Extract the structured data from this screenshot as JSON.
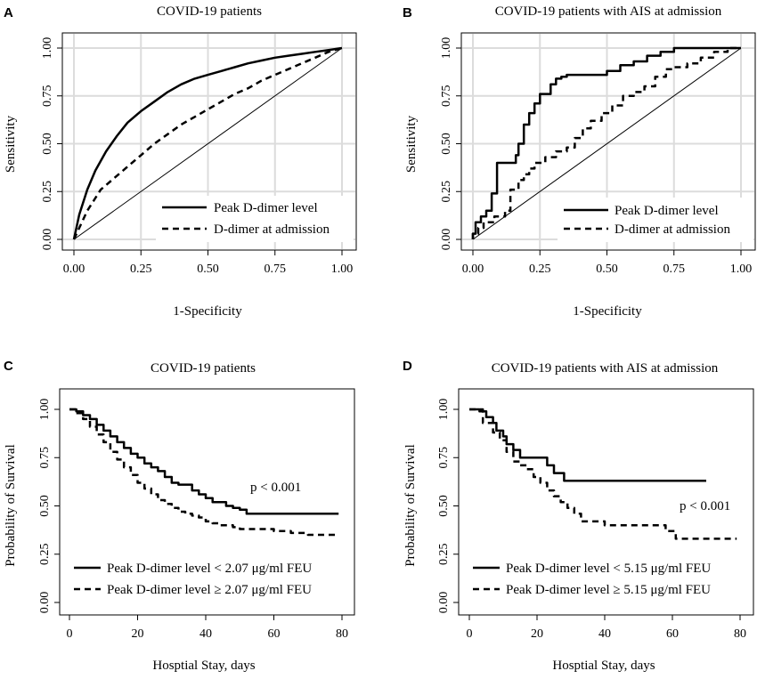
{
  "chart_data": [
    {
      "panel": "A",
      "type": "line",
      "title": "COVID-19 patients",
      "xlabel": "1-Specificity",
      "ylabel": "Sensitivity",
      "xlim": [
        0,
        1
      ],
      "ylim": [
        0,
        1
      ],
      "xticks": [
        "0.00",
        "0.25",
        "0.50",
        "0.75",
        "1.00"
      ],
      "yticks": [
        "0.00",
        "0.25",
        "0.50",
        "0.75",
        "1.00"
      ],
      "grid": true,
      "reference_line": true,
      "legend_position": "bottom-right",
      "series": [
        {
          "name": "Peak D-dimer level",
          "style": "solid",
          "step": false,
          "x": [
            0,
            0.02,
            0.05,
            0.08,
            0.12,
            0.16,
            0.2,
            0.25,
            0.3,
            0.35,
            0.4,
            0.45,
            0.5,
            0.55,
            0.6,
            0.65,
            0.7,
            0.75,
            0.8,
            0.85,
            0.9,
            0.95,
            1.0
          ],
          "y": [
            0,
            0.13,
            0.26,
            0.36,
            0.46,
            0.54,
            0.61,
            0.67,
            0.72,
            0.77,
            0.81,
            0.84,
            0.86,
            0.88,
            0.9,
            0.92,
            0.935,
            0.95,
            0.96,
            0.97,
            0.98,
            0.99,
            1.0
          ]
        },
        {
          "name": "D-dimer at admission",
          "style": "dashed",
          "step": false,
          "x": [
            0,
            0.05,
            0.1,
            0.15,
            0.2,
            0.25,
            0.3,
            0.35,
            0.4,
            0.45,
            0.5,
            0.55,
            0.6,
            0.65,
            0.7,
            0.75,
            0.8,
            0.85,
            0.9,
            0.95,
            1.0
          ],
          "y": [
            0,
            0.15,
            0.26,
            0.32,
            0.38,
            0.44,
            0.5,
            0.55,
            0.6,
            0.64,
            0.68,
            0.72,
            0.76,
            0.79,
            0.83,
            0.86,
            0.89,
            0.92,
            0.95,
            0.98,
            1.0
          ]
        }
      ]
    },
    {
      "panel": "B",
      "type": "line",
      "title": "COVID-19 patients with AIS at admission",
      "xlabel": "1-Specificity",
      "ylabel": "Sensitivity",
      "xlim": [
        0,
        1
      ],
      "ylim": [
        0,
        1
      ],
      "xticks": [
        "0.00",
        "0.25",
        "0.50",
        "0.75",
        "1.00"
      ],
      "yticks": [
        "0.00",
        "0.25",
        "0.50",
        "0.75",
        "1.00"
      ],
      "grid": true,
      "reference_line": true,
      "legend_position": "bottom-right",
      "series": [
        {
          "name": "Peak D-dimer level",
          "style": "solid",
          "step": true,
          "x": [
            0,
            0.01,
            0.01,
            0.03,
            0.05,
            0.07,
            0.09,
            0.13,
            0.16,
            0.17,
            0.19,
            0.21,
            0.23,
            0.25,
            0.27,
            0.29,
            0.31,
            0.33,
            0.35,
            0.37,
            0.4,
            0.43,
            0.5,
            0.55,
            0.6,
            0.65,
            0.7,
            0.75,
            0.8,
            0.9,
            1.0
          ],
          "y": [
            0,
            0.03,
            0.06,
            0.09,
            0.12,
            0.15,
            0.24,
            0.4,
            0.4,
            0.44,
            0.5,
            0.6,
            0.66,
            0.71,
            0.76,
            0.76,
            0.81,
            0.84,
            0.85,
            0.86,
            0.86,
            0.86,
            0.86,
            0.88,
            0.91,
            0.93,
            0.96,
            0.98,
            1.0,
            1.0,
            1.0
          ]
        },
        {
          "name": "D-dimer at admission",
          "style": "dashed",
          "step": true,
          "x": [
            0,
            0.02,
            0.04,
            0.08,
            0.12,
            0.14,
            0.17,
            0.19,
            0.21,
            0.23,
            0.27,
            0.31,
            0.35,
            0.38,
            0.41,
            0.44,
            0.48,
            0.52,
            0.56,
            0.6,
            0.64,
            0.68,
            0.72,
            0.75,
            0.8,
            0.85,
            0.9,
            0.95,
            1.0
          ],
          "y": [
            0,
            0.03,
            0.06,
            0.09,
            0.12,
            0.15,
            0.26,
            0.31,
            0.34,
            0.37,
            0.4,
            0.43,
            0.46,
            0.48,
            0.53,
            0.58,
            0.62,
            0.66,
            0.7,
            0.75,
            0.77,
            0.8,
            0.85,
            0.89,
            0.9,
            0.92,
            0.95,
            0.98,
            1.0
          ]
        }
      ]
    },
    {
      "panel": "C",
      "type": "line",
      "title": "COVID-19 patients",
      "xlabel": "Hosptial Stay, days",
      "ylabel": "Probability of Survival",
      "xlim": [
        0,
        80
      ],
      "ylim": [
        0,
        1
      ],
      "xticks": [
        "0",
        "20",
        "40",
        "60",
        "80"
      ],
      "yticks": [
        "0.00",
        "0.25",
        "0.50",
        "0.75",
        "1.00"
      ],
      "grid": false,
      "reference_line": false,
      "legend_position": "bottom-left",
      "annotation": "p < 0.001",
      "series": [
        {
          "name": "Peak D-dimer level < 2.07 μg/ml FEU",
          "style": "solid",
          "step": true,
          "x": [
            0,
            2,
            4,
            6,
            8,
            10,
            12,
            14,
            16,
            18,
            20,
            22,
            24,
            26,
            28,
            30,
            32,
            34,
            36,
            38,
            40,
            42,
            44,
            46,
            48,
            50,
            52,
            79
          ],
          "y": [
            1.0,
            0.99,
            0.97,
            0.95,
            0.92,
            0.89,
            0.86,
            0.83,
            0.8,
            0.77,
            0.75,
            0.72,
            0.7,
            0.68,
            0.65,
            0.62,
            0.61,
            0.61,
            0.58,
            0.56,
            0.54,
            0.52,
            0.52,
            0.5,
            0.49,
            0.48,
            0.46,
            0.46
          ]
        },
        {
          "name": "Peak D-dimer level ≥ 2.07 μg/ml FEU",
          "style": "dashed",
          "step": true,
          "x": [
            0,
            2,
            4,
            6,
            8,
            10,
            12,
            14,
            16,
            18,
            20,
            22,
            24,
            26,
            28,
            30,
            32,
            34,
            36,
            38,
            40,
            42,
            44,
            46,
            48,
            50,
            52,
            55,
            60,
            65,
            70,
            75,
            79
          ],
          "y": [
            1.0,
            0.98,
            0.95,
            0.91,
            0.87,
            0.83,
            0.78,
            0.74,
            0.7,
            0.66,
            0.62,
            0.59,
            0.56,
            0.53,
            0.51,
            0.49,
            0.47,
            0.46,
            0.45,
            0.44,
            0.42,
            0.41,
            0.4,
            0.4,
            0.39,
            0.38,
            0.38,
            0.38,
            0.37,
            0.36,
            0.35,
            0.35,
            0.35
          ]
        }
      ]
    },
    {
      "panel": "D",
      "type": "line",
      "title": "COVID-19 patients with AIS at admission",
      "xlabel": "Hosptial Stay, days",
      "ylabel": "Probability of Survival",
      "xlim": [
        0,
        80
      ],
      "ylim": [
        0,
        1
      ],
      "xticks": [
        "0",
        "20",
        "40",
        "60",
        "80"
      ],
      "yticks": [
        "0.00",
        "0.25",
        "0.50",
        "0.75",
        "1.00"
      ],
      "grid": false,
      "reference_line": false,
      "legend_position": "bottom-left",
      "annotation": "p < 0.001",
      "series": [
        {
          "name": "Peak D-dimer level < 5.15 μg/ml FEU",
          "style": "solid",
          "step": true,
          "x": [
            0,
            3,
            5,
            7,
            8,
            10,
            11,
            13,
            15,
            21,
            23,
            25,
            28,
            70
          ],
          "y": [
            1.0,
            0.99,
            0.96,
            0.93,
            0.89,
            0.86,
            0.82,
            0.79,
            0.75,
            0.75,
            0.71,
            0.67,
            0.63,
            0.63
          ]
        },
        {
          "name": "Peak D-dimer level ≥ 5.15 μg/ml FEU",
          "style": "dashed",
          "step": true,
          "x": [
            0,
            4,
            7,
            9,
            11,
            13,
            15,
            17,
            19,
            21,
            23,
            25,
            27,
            29,
            31,
            33,
            35,
            40,
            45,
            52,
            58,
            61,
            66,
            79
          ],
          "y": [
            1.0,
            0.93,
            0.88,
            0.84,
            0.78,
            0.73,
            0.71,
            0.69,
            0.65,
            0.62,
            0.58,
            0.55,
            0.52,
            0.49,
            0.46,
            0.42,
            0.42,
            0.4,
            0.4,
            0.4,
            0.37,
            0.33,
            0.33,
            0.33
          ]
        }
      ]
    }
  ]
}
